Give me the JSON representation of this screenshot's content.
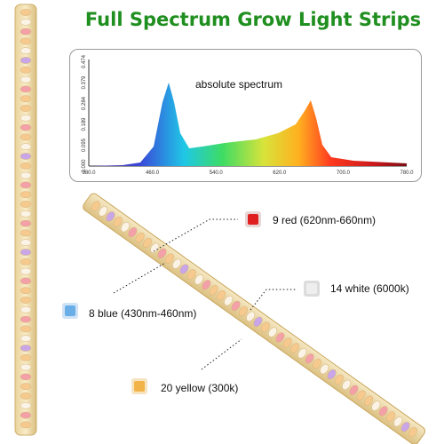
{
  "title": "Full Spectrum Grow Light Strips",
  "spectrum": {
    "label": "absolute spectrum",
    "x_ticks": [
      "380.0",
      "460.0",
      "540.0",
      "620.0",
      "700.0",
      "780.0"
    ],
    "y_ticks": [
      "0.000",
      "0.095",
      "0.189",
      "0.284",
      "0.379",
      "0.474"
    ]
  },
  "callouts": {
    "red": {
      "label": "9 red (620nm-660nm)",
      "color": "#e02020"
    },
    "white": {
      "label": "14 white (6000k)",
      "color": "#eeeeee"
    },
    "blue": {
      "label": "8 blue (430nm-460nm)",
      "color": "#6aaee8"
    },
    "yellow": {
      "label": "20 yellow (300k)",
      "color": "#f2b449"
    }
  },
  "led_colors": {
    "warm": "#f6c98e",
    "white": "#fbf3e6",
    "pink": "#f3a0a8",
    "purple": "#c9a6e8",
    "strip": "#efdcab"
  }
}
